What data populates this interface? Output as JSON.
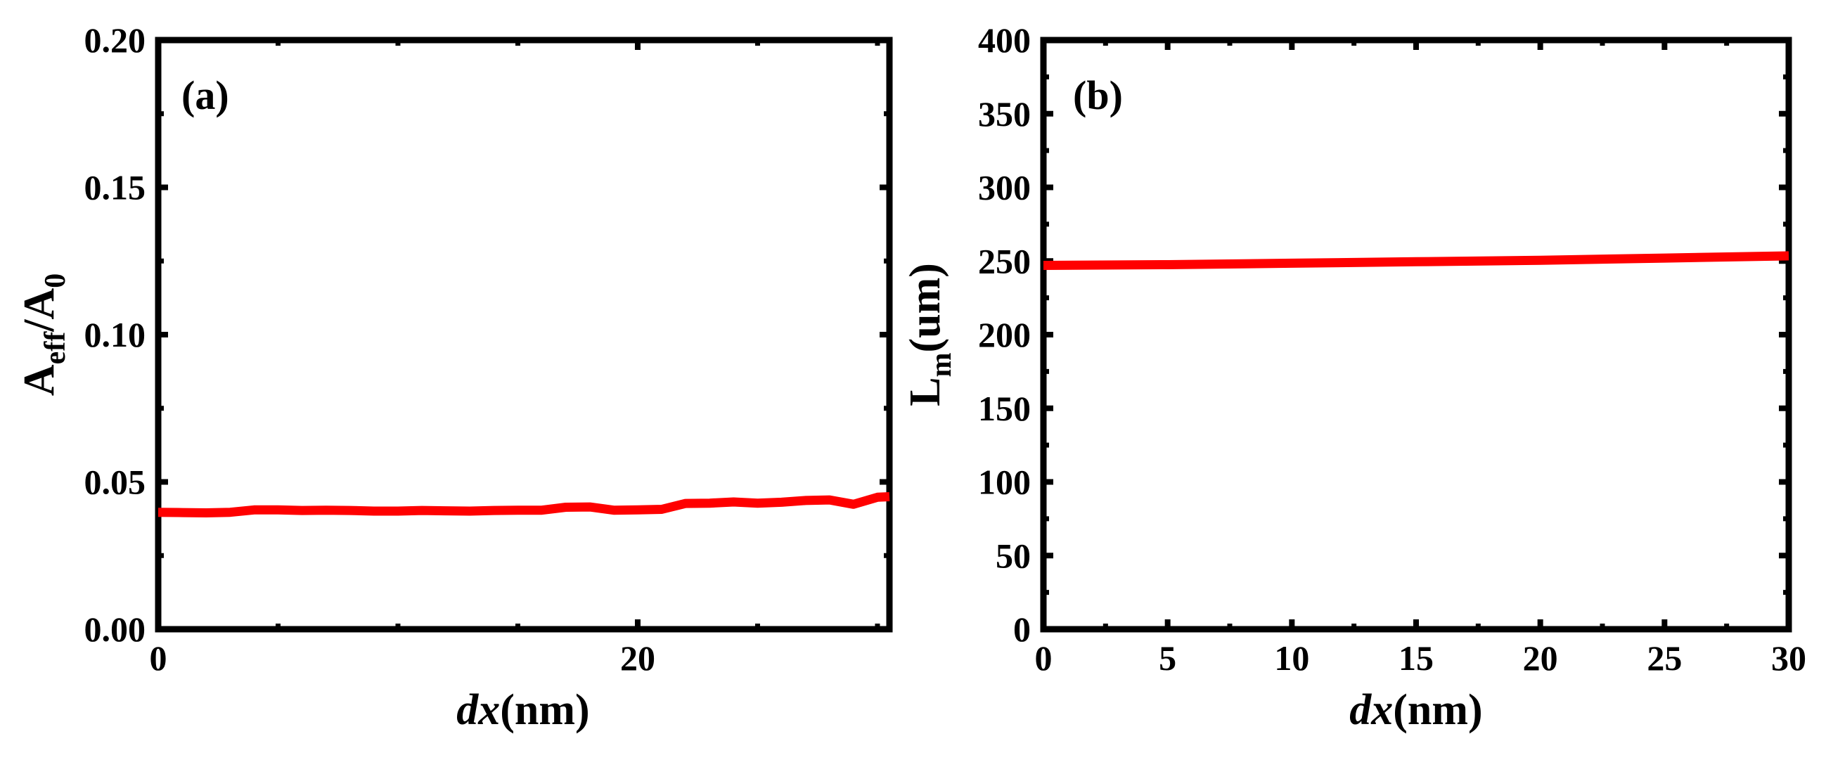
{
  "chart_data": [
    {
      "type": "line",
      "panel_label": "(a)",
      "xlabel_italic": "dx",
      "xlabel_rest": "(nm)",
      "ylabel_main": "A",
      "ylabel_sub": "eff",
      "ylabel_slash": "/A",
      "ylabel_sub2": "0",
      "xlim": [
        0,
        30.5
      ],
      "ylim": [
        0,
        0.2
      ],
      "xticks": [
        0,
        20
      ],
      "xtick_labels": [
        "0",
        "20"
      ],
      "yticks": [
        0,
        0.05,
        0.1,
        0.15,
        0.2
      ],
      "ytick_labels": [
        "0.00",
        "0.05",
        "0.10",
        "0.15",
        "0.20"
      ],
      "line_color": "#ff0000",
      "series": [
        {
          "x": [
            0,
            1,
            2,
            3,
            4,
            5,
            6,
            7,
            8,
            9,
            10,
            11,
            12,
            13,
            14,
            15,
            16,
            17,
            18,
            19,
            20,
            21,
            22,
            23,
            24,
            25,
            26,
            27,
            28,
            29,
            30,
            30.5
          ],
          "values": [
            0.0397,
            0.0396,
            0.0395,
            0.0397,
            0.0405,
            0.0405,
            0.0403,
            0.0404,
            0.0403,
            0.0401,
            0.0401,
            0.0403,
            0.0402,
            0.0401,
            0.0403,
            0.0404,
            0.0404,
            0.0414,
            0.0415,
            0.0404,
            0.0405,
            0.0407,
            0.0427,
            0.0428,
            0.0432,
            0.0428,
            0.0431,
            0.0437,
            0.0439,
            0.0424,
            0.0448,
            0.045
          ]
        }
      ]
    },
    {
      "type": "line",
      "panel_label": "(b)",
      "xlabel_italic": "dx",
      "xlabel_rest": "(nm)",
      "ylabel_main": "L",
      "ylabel_sub": "m",
      "ylabel_rest": "(um)",
      "xlim": [
        0,
        30
      ],
      "ylim": [
        0,
        400
      ],
      "xticks": [
        0,
        5,
        10,
        15,
        20,
        25,
        30
      ],
      "xtick_labels": [
        "0",
        "5",
        "10",
        "15",
        "20",
        "25",
        "30"
      ],
      "yticks": [
        0,
        50,
        100,
        150,
        200,
        250,
        300,
        350,
        400
      ],
      "ytick_labels": [
        "0",
        "50",
        "100",
        "150",
        "200",
        "250",
        "300",
        "350",
        "400"
      ],
      "line_color": "#ff0000",
      "series": [
        {
          "x": [
            0,
            5,
            10,
            15,
            20,
            25,
            30
          ],
          "values": [
            247,
            247.5,
            248.5,
            249.5,
            250.5,
            252,
            253.5
          ]
        }
      ]
    }
  ]
}
